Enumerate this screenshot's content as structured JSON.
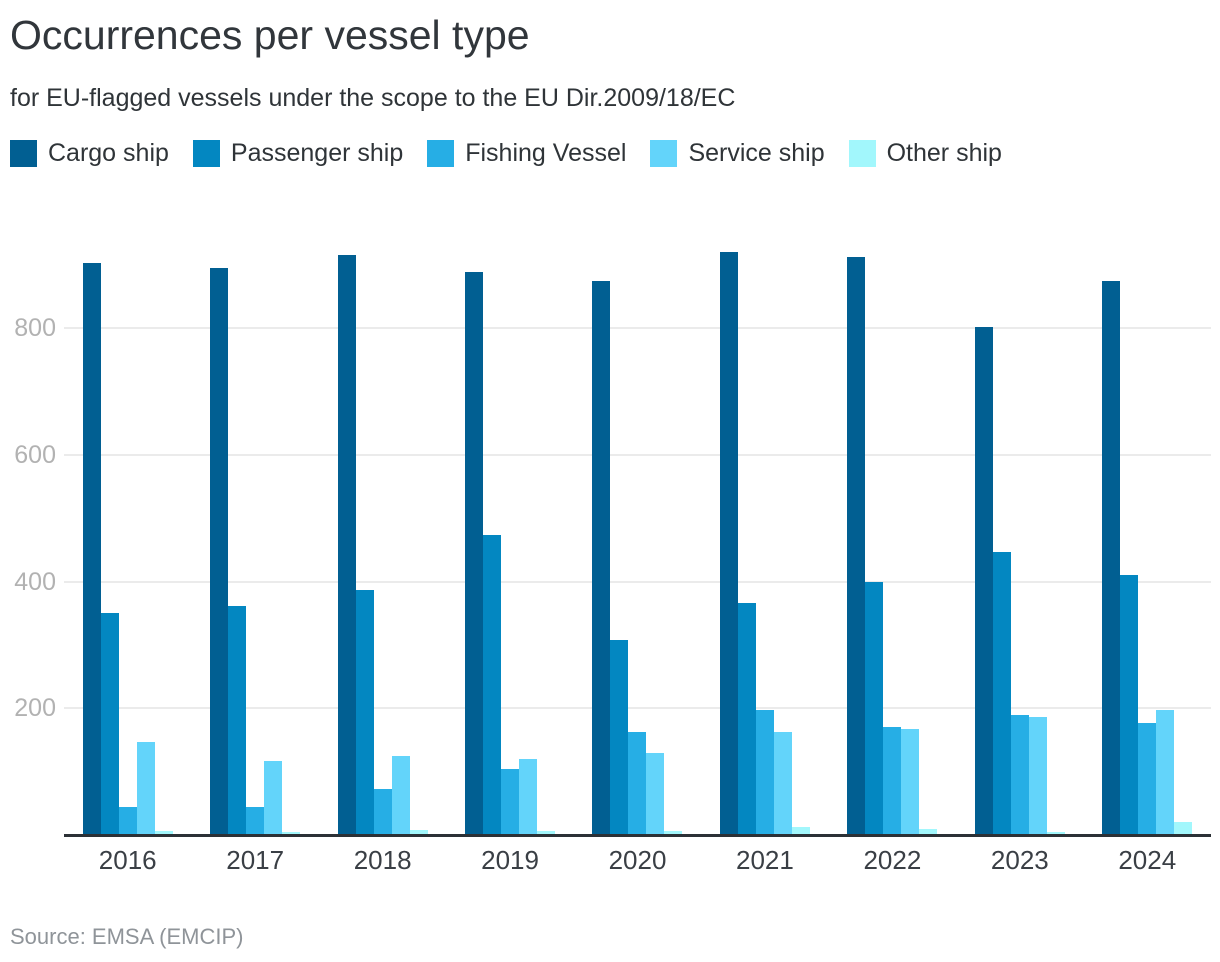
{
  "chart_data": {
    "type": "bar",
    "title": "Occurrences per vessel type",
    "subtitle": "for EU-flagged vessels under the scope to the EU Dir.2009/18/EC",
    "categories": [
      "2016",
      "2017",
      "2018",
      "2019",
      "2020",
      "2021",
      "2022",
      "2023",
      "2024"
    ],
    "series": [
      {
        "name": "Cargo ship",
        "color": "#015f92",
        "values": [
          903,
          895,
          915,
          888,
          875,
          921,
          913,
          802,
          874
        ]
      },
      {
        "name": "Passenger ship",
        "color": "#0387c1",
        "values": [
          350,
          362,
          386,
          473,
          308,
          366,
          399,
          447,
          410
        ]
      },
      {
        "name": "Fishing Vessel",
        "color": "#26aee5",
        "values": [
          44,
          44,
          72,
          104,
          163,
          197,
          171,
          190,
          177
        ]
      },
      {
        "name": "Service ship",
        "color": "#63d4fa",
        "values": [
          147,
          117,
          125,
          120,
          129,
          162,
          167,
          186,
          198
        ]
      },
      {
        "name": "Other ship",
        "color": "#a2f7fc",
        "values": [
          7,
          5,
          8,
          7,
          7,
          12,
          10,
          4,
          20
        ]
      }
    ],
    "xlabel": "",
    "ylabel": "",
    "yticks": [
      200,
      400,
      600,
      800
    ],
    "ylim": [
      0,
      950
    ],
    "grid": true,
    "legend_position": "top"
  },
  "footer": {
    "source": "Source: EMSA (EMCIP)"
  }
}
